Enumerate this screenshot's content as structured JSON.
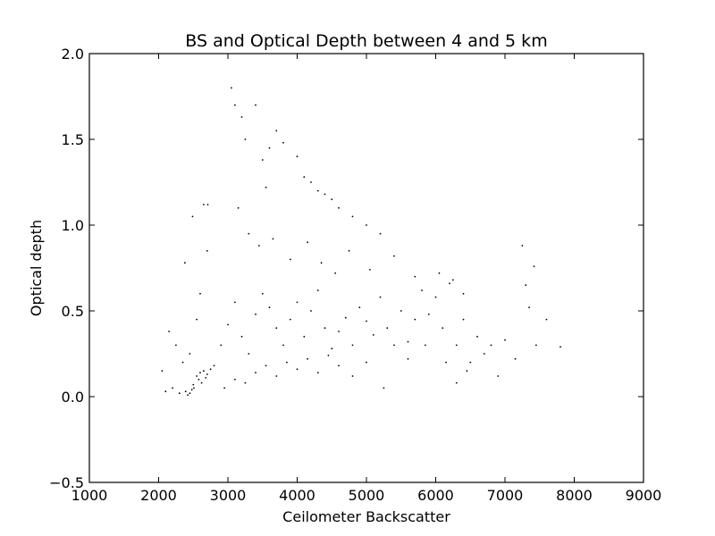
{
  "chart_data": {
    "type": "scatter",
    "title": "BS and Optical Depth between 4 and 5 km",
    "xlabel": "Ceilometer Backscatter",
    "ylabel": "Optical depth",
    "xlim": [
      1000,
      9000
    ],
    "ylim": [
      -0.5,
      2.0
    ],
    "xticks": [
      1000,
      2000,
      3000,
      4000,
      5000,
      6000,
      7000,
      8000,
      9000
    ],
    "xtick_labels": [
      "1000",
      "2000",
      "3000",
      "4000",
      "5000",
      "6000",
      "7000",
      "8000",
      "9000"
    ],
    "yticks": [
      -0.5,
      0.0,
      0.5,
      1.0,
      1.5,
      2.0
    ],
    "ytick_labels": [
      "−0.5",
      "0.0",
      "0.5",
      "1.0",
      "1.5",
      "2.0"
    ],
    "grid": false,
    "marker_color": "#000000",
    "points": [
      [
        2450,
        0.02
      ],
      [
        2390,
        0.03
      ],
      [
        2420,
        0.01
      ],
      [
        2480,
        0.04
      ],
      [
        2510,
        0.05
      ],
      [
        2550,
        0.12
      ],
      [
        2600,
        0.14
      ],
      [
        2650,
        0.15
      ],
      [
        2700,
        0.13
      ],
      [
        2580,
        0.1
      ],
      [
        2620,
        0.08
      ],
      [
        2680,
        0.11
      ],
      [
        2750,
        0.16
      ],
      [
        2800,
        0.18
      ],
      [
        2500,
        0.07
      ],
      [
        2300,
        0.02
      ],
      [
        2200,
        0.05
      ],
      [
        2100,
        0.03
      ],
      [
        2050,
        0.15
      ],
      [
        2150,
        0.38
      ],
      [
        2250,
        0.3
      ],
      [
        2350,
        0.2
      ],
      [
        2450,
        0.25
      ],
      [
        2550,
        0.45
      ],
      [
        2600,
        0.6
      ],
      [
        2700,
        0.85
      ],
      [
        2650,
        1.12
      ],
      [
        2710,
        1.12
      ],
      [
        2490,
        1.05
      ],
      [
        2380,
        0.78
      ],
      [
        2900,
        0.3
      ],
      [
        3000,
        0.42
      ],
      [
        3100,
        0.55
      ],
      [
        3200,
        0.35
      ],
      [
        3300,
        0.25
      ],
      [
        3400,
        0.48
      ],
      [
        3500,
        0.6
      ],
      [
        3600,
        0.52
      ],
      [
        3700,
        0.4
      ],
      [
        3800,
        0.3
      ],
      [
        3900,
        0.45
      ],
      [
        4000,
        0.55
      ],
      [
        4100,
        0.35
      ],
      [
        4200,
        0.5
      ],
      [
        4300,
        0.62
      ],
      [
        4400,
        0.4
      ],
      [
        4500,
        0.28
      ],
      [
        4600,
        0.38
      ],
      [
        4700,
        0.46
      ],
      [
        4800,
        0.3
      ],
      [
        4900,
        0.52
      ],
      [
        5000,
        0.44
      ],
      [
        5100,
        0.36
      ],
      [
        5200,
        0.58
      ],
      [
        5300,
        0.4
      ],
      [
        5400,
        0.3
      ],
      [
        5500,
        0.5
      ],
      [
        5600,
        0.32
      ],
      [
        5700,
        0.45
      ],
      [
        5800,
        0.62
      ],
      [
        5900,
        0.48
      ],
      [
        6000,
        0.58
      ],
      [
        6100,
        0.4
      ],
      [
        6200,
        0.66
      ],
      [
        6300,
        0.3
      ],
      [
        6400,
        0.45
      ],
      [
        6500,
        0.2
      ],
      [
        6600,
        0.35
      ],
      [
        6700,
        0.25
      ],
      [
        6800,
        0.3
      ],
      [
        6900,
        0.12
      ],
      [
        7000,
        0.33
      ],
      [
        7150,
        0.22
      ],
      [
        7250,
        0.88
      ],
      [
        7300,
        0.65
      ],
      [
        7350,
        0.52
      ],
      [
        7420,
        0.76
      ],
      [
        7450,
        0.3
      ],
      [
        7600,
        0.45
      ],
      [
        7800,
        0.29
      ],
      [
        3050,
        1.8
      ],
      [
        3100,
        1.7
      ],
      [
        3200,
        1.63
      ],
      [
        3250,
        1.5
      ],
      [
        3400,
        1.7
      ],
      [
        3500,
        1.38
      ],
      [
        3550,
        1.22
      ],
      [
        3600,
        1.45
      ],
      [
        3700,
        1.55
      ],
      [
        3800,
        1.48
      ],
      [
        4000,
        1.4
      ],
      [
        4100,
        1.28
      ],
      [
        4200,
        1.25
      ],
      [
        4300,
        1.2
      ],
      [
        4400,
        1.18
      ],
      [
        4500,
        1.15
      ],
      [
        4600,
        1.1
      ],
      [
        4800,
        1.05
      ],
      [
        5000,
        1.0
      ],
      [
        5200,
        0.95
      ],
      [
        3150,
        1.1
      ],
      [
        3300,
        0.95
      ],
      [
        3450,
        0.88
      ],
      [
        3650,
        0.92
      ],
      [
        3900,
        0.8
      ],
      [
        4150,
        0.9
      ],
      [
        4350,
        0.78
      ],
      [
        4550,
        0.72
      ],
      [
        4750,
        0.85
      ],
      [
        5050,
        0.74
      ],
      [
        5400,
        0.82
      ],
      [
        5700,
        0.7
      ],
      [
        6050,
        0.72
      ],
      [
        6250,
        0.68
      ],
      [
        6400,
        0.6
      ],
      [
        2950,
        0.05
      ],
      [
        3100,
        0.1
      ],
      [
        3250,
        0.08
      ],
      [
        3400,
        0.14
      ],
      [
        3550,
        0.18
      ],
      [
        3700,
        0.12
      ],
      [
        3850,
        0.2
      ],
      [
        4000,
        0.16
      ],
      [
        4150,
        0.22
      ],
      [
        4300,
        0.14
      ],
      [
        4450,
        0.24
      ],
      [
        4600,
        0.18
      ],
      [
        4800,
        0.12
      ],
      [
        5000,
        0.2
      ],
      [
        5250,
        0.05
      ],
      [
        6300,
        0.08
      ],
      [
        6450,
        0.15
      ],
      [
        6150,
        0.2
      ],
      [
        5850,
        0.3
      ],
      [
        5600,
        0.22
      ]
    ]
  }
}
